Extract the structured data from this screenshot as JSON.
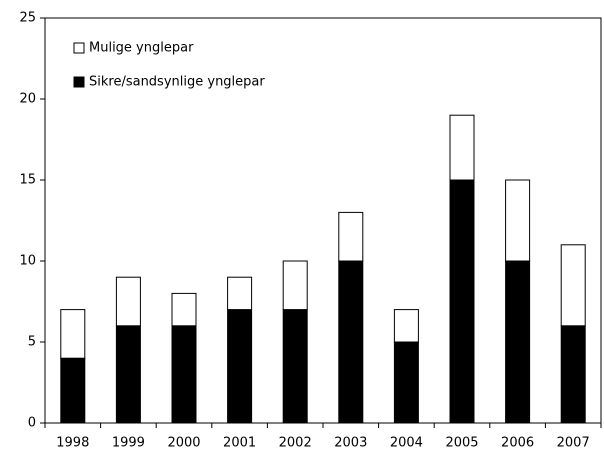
{
  "chart_data": {
    "type": "stacked_bar",
    "categories": [
      "1998",
      "1999",
      "2000",
      "2001",
      "2002",
      "2003",
      "2004",
      "2005",
      "2006",
      "2007"
    ],
    "series": [
      {
        "name": "Sikre/sandsynlige ynglepar",
        "color": "#000000",
        "values": [
          4,
          6,
          6,
          7,
          7,
          10,
          5,
          15,
          10,
          6
        ]
      },
      {
        "name": "Mulige ynglepar",
        "color": "#ffffff",
        "values": [
          3,
          3,
          2,
          2,
          3,
          3,
          2,
          4,
          5,
          5
        ]
      }
    ],
    "ylim": [
      0,
      25
    ],
    "yticks": [
      0,
      5,
      10,
      15,
      20,
      25
    ],
    "grid": false,
    "legend": "upper left"
  }
}
